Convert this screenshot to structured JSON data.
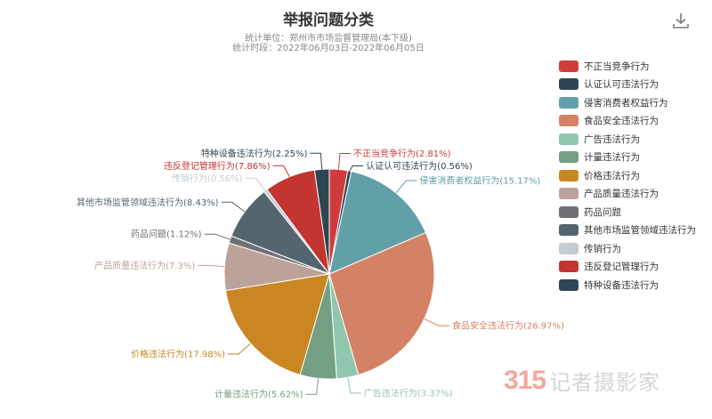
{
  "chart_data": {
    "type": "pie",
    "title": "举报问题分类",
    "subtitle_lines": [
      "统计单位：郑州市市场监督管理局(本下级)",
      "统计时段：2022年06月03日-2022年06月05日"
    ],
    "legend_position": "right",
    "slices": [
      {
        "name": "不正当竞争行为",
        "value": 2.81,
        "label": "不正当竞争行为(2.81%)",
        "color": "#d03c3c"
      },
      {
        "name": "认证认可违法行为",
        "value": 0.56,
        "label": "认证认可违法行为(0.56%)",
        "color": "#2f4554"
      },
      {
        "name": "侵害消费者权益行为",
        "value": 15.17,
        "label": "侵害消费者权益行为(15.17%)",
        "color": "#61a0a8"
      },
      {
        "name": "食品安全违法行为",
        "value": 26.97,
        "label": "食品安全违法行为(26.97%)",
        "color": "#d48265"
      },
      {
        "name": "广告违法行为",
        "value": 3.37,
        "label": "广告违法行为(3.37%)",
        "color": "#91c7ae"
      },
      {
        "name": "计量违法行为",
        "value": 5.62,
        "label": "计量违法行为(5.62%)",
        "color": "#749f83"
      },
      {
        "name": "价格违法行为",
        "value": 17.98,
        "label": "价格违法行为(17.98%)",
        "color": "#ca8622"
      },
      {
        "name": "产品质量违法行为",
        "value": 7.3,
        "label": "产品质量违法行为(7.3%)",
        "color": "#bda29a"
      },
      {
        "name": "药品问题",
        "value": 1.12,
        "label": "药品问题(1.12%)",
        "color": "#6e7074"
      },
      {
        "name": "其他市场监管领域违法行为",
        "value": 8.43,
        "label": "其他市场监管领域违法行为(8.43%)",
        "color": "#546570"
      },
      {
        "name": "传销行为",
        "value": 0.56,
        "label": "传销行为(0.56%)",
        "color": "#c4ccd3"
      },
      {
        "name": "违反登记管理行为",
        "value": 7.86,
        "label": "违反登记管理行为(7.86%)",
        "color": "#c23531"
      },
      {
        "name": "特种设备违法行为",
        "value": 2.25,
        "label": "特种设备违法行为(2.25%)",
        "color": "#2f4554"
      }
    ]
  },
  "toolbar": {
    "download_icon": "download-icon"
  },
  "watermark": {
    "number": "315",
    "text": "记者摄影家"
  }
}
